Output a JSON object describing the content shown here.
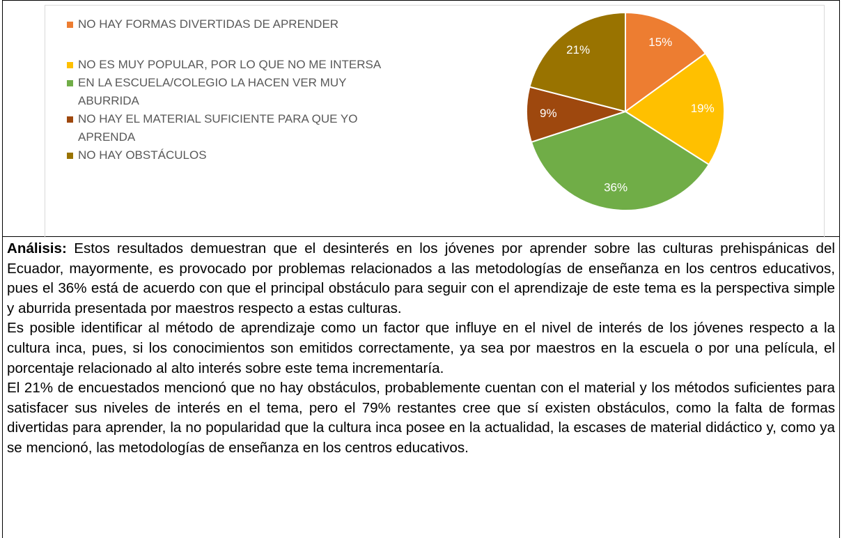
{
  "chart_data": {
    "type": "pie",
    "categories": [
      "NO HAY FORMAS DIVERTIDAS DE APRENDER",
      "NO ES MUY POPULAR, POR LO QUE NO ME INTERSA",
      "EN LA ESCUELA/COLEGIO LA HACEN VER MUY ABURRIDA",
      "NO HAY EL MATERIAL SUFICIENTE PARA QUE YO APRENDA",
      "NO HAY OBSTÁCULOS"
    ],
    "values": [
      15,
      19,
      36,
      9,
      21
    ],
    "value_labels": [
      "15%",
      "19%",
      "36%",
      "9%",
      "21%"
    ],
    "colors": [
      "#ED7D31",
      "#FFC000",
      "#70AD47",
      "#9E480E",
      "#997300"
    ],
    "legend": "left"
  },
  "analysis": {
    "label": "Análisis:",
    "paragraphs": [
      "Estos resultados demuestran que el desinterés en los jóvenes por aprender sobre las culturas prehispánicas del Ecuador, mayormente, es provocado por problemas relacionados a las metodologías de enseñanza en los centros educativos, pues el 36% está de acuerdo con que el principal obstáculo para seguir con el aprendizaje de este tema es la perspectiva simple y aburrida presentada por maestros respecto a estas culturas.",
      "Es posible identificar al método de aprendizaje como un factor que influye en el nivel de interés de los jóvenes respecto a la cultura inca, pues, si los conocimientos son emitidos correctamente, ya sea por maestros en la escuela o por una película, el porcentaje relacionado al alto interés sobre este tema incrementaría.",
      "El 21% de encuestados mencionó que no hay obstáculos, probablemente cuentan con el material y los métodos suficientes para satisfacer sus niveles de interés en el tema, pero el 79% restantes cree que sí existen obstáculos, como la falta de formas divertidas para aprender, la no popularidad que la cultura inca posee en la actualidad, la escases de material didáctico y, como ya se mencionó, las metodologías de enseñanza en los centros educativos."
    ]
  }
}
